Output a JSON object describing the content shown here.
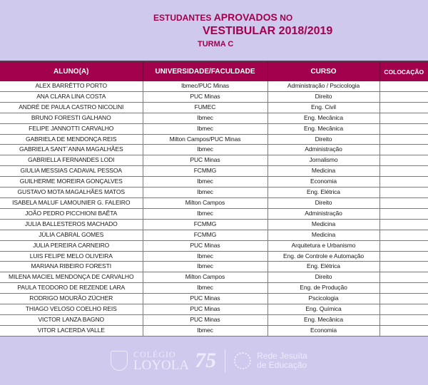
{
  "header": {
    "line1_a": "ESTUDANTES ",
    "line1_b": "APROVADOS",
    "line1_c": " NO",
    "line2": "VESTIBULAR 2018/2019",
    "line3": "TURMA C"
  },
  "table": {
    "columns": [
      "ALUNO(A)",
      "UNIVERSIDADE/FACULDADE",
      "CURSO",
      "COLOCAÇÃO"
    ],
    "rows": [
      [
        "ALEX BARRÊTTO PORTO",
        "Ibmec/PUC Minas",
        "Administração / Pscicologia",
        ""
      ],
      [
        "ANA CLARA LINA COSTA",
        "PUC Minas",
        "Direito",
        ""
      ],
      [
        "ANDRÉ DE PAULA CASTRO NICOLINI",
        "FUMEC",
        "Eng. Civil",
        ""
      ],
      [
        "BRUNO FORESTI GALHANO",
        "Ibmec",
        "Eng. Mecânica",
        ""
      ],
      [
        "FELIPE JANNOTTI CARVALHO",
        "Ibmec",
        "Eng. Mecânica",
        ""
      ],
      [
        "GABRIELA DE MENDONÇA REIS",
        "Milton Campos/PUC Minas",
        "Direito",
        ""
      ],
      [
        "GABRIELA SANT`ANNA MAGALHÃES",
        "Ibmec",
        "Administração",
        ""
      ],
      [
        "GABRIELLA FERNANDES LODI",
        "PUC Minas",
        "Jornalismo",
        ""
      ],
      [
        "GIULIA MESSIAS CADAVAL PESSOA",
        "FCMMG",
        "Medicina",
        ""
      ],
      [
        "GUILHERME MOREIRA GONÇALVES",
        "Ibmec",
        "Economia",
        ""
      ],
      [
        "GUSTAVO MOTA MAGALHÃES MATOS",
        "Ibmec",
        "Eng. Elétrica",
        ""
      ],
      [
        "ISABELA MALUF LAMOUNIER G. FALEIRO",
        "Milton Campos",
        "Direito",
        ""
      ],
      [
        "JOÃO PEDRO PICCHIONI BAÊTA",
        "Ibmec",
        "Administração",
        ""
      ],
      [
        "JULIA BALLESTEROS MACHADO",
        "FCMMG",
        "Medicina",
        ""
      ],
      [
        "JÚLIA CABRAL GOMES",
        "FCMMG",
        "Medicina",
        ""
      ],
      [
        "JULIA PEREIRA CARNEIRO",
        "PUC Minas",
        "Arquitetura e Urbanismo",
        ""
      ],
      [
        "LUIS FELIPE MELO OLIVEIRA",
        "Ibmec",
        "Eng. de Controle e Automação",
        ""
      ],
      [
        "MARIANA RIBEIRO FORESTI",
        "Ibmec",
        "Eng. Elétrica",
        ""
      ],
      [
        "MILENA MACIEL MENDONÇA DE CARVALHO",
        "Milton Campos",
        "Direito",
        ""
      ],
      [
        "PAULA TEODORO DE REZENDE LARA",
        "Ibmec",
        "Eng. de Produção",
        ""
      ],
      [
        "RODRIGO MOURÃO ZÜCHER",
        "PUC Minas",
        "Pscicologia",
        ""
      ],
      [
        "THIAGO VELOSO COELHO REIS",
        "PUC Minas",
        "Eng. Química",
        ""
      ],
      [
        "VICTOR LANZA BAGNO",
        "PUC Minas",
        "Eng. Mecânica",
        ""
      ],
      [
        "VITOR LACERDA VALLE",
        "Ibmec",
        "Economia",
        ""
      ]
    ]
  },
  "footer": {
    "logo_line1": "COLÉGIO",
    "logo_line2": "LOYOLA",
    "anniversary": "75",
    "network_line1": "Rede Jesuíta",
    "network_line2": "de Educação"
  },
  "colors": {
    "background": "#cec9ed",
    "accent": "#a3004d"
  }
}
